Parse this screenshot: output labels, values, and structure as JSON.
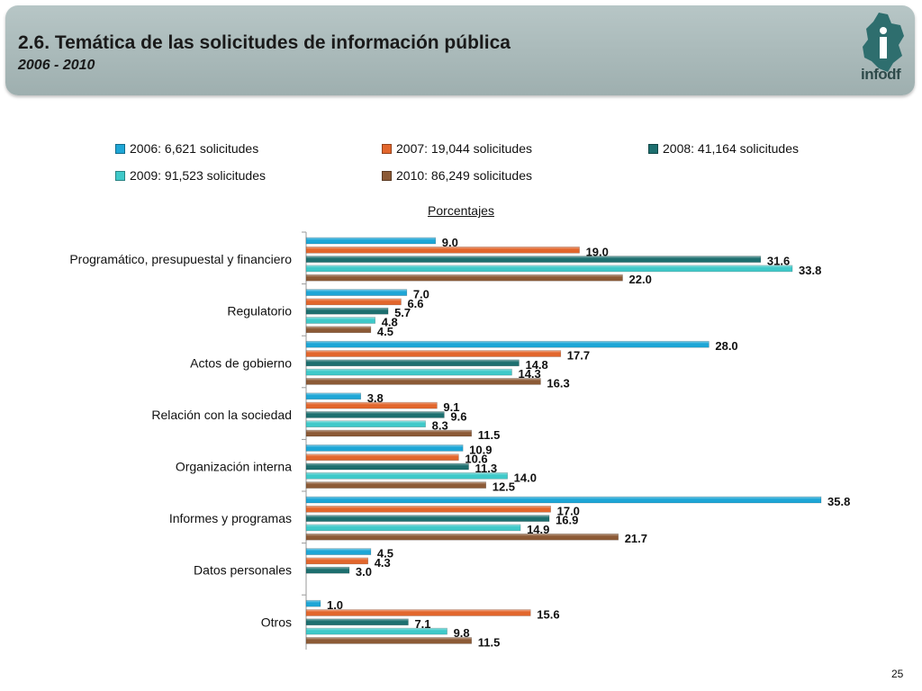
{
  "slide": {
    "title": "2.6. Temática de las solicitudes de información pública",
    "subtitle": "2006 - 2010",
    "logo_text": "infodf",
    "page_number": "25"
  },
  "chart_data": {
    "type": "bar",
    "orientation": "horizontal",
    "title": "Porcentajes",
    "categories": [
      "Programático, presupuestal y financiero",
      "Regulatorio",
      "Actos de gobierno",
      "Relación con la sociedad",
      "Organización interna",
      "Informes y programas",
      "Datos personales",
      "Otros"
    ],
    "series": [
      {
        "name": "2006: 6,621 solicitudes",
        "color": "#1ea6d6",
        "values": [
          9.0,
          7.0,
          28.0,
          3.8,
          10.9,
          35.8,
          4.5,
          1.0
        ]
      },
      {
        "name": "2007: 19,044 solicitudes",
        "color": "#e2662c",
        "values": [
          19.0,
          6.6,
          17.7,
          9.1,
          10.6,
          17.0,
          4.3,
          15.6
        ]
      },
      {
        "name": "2008: 41,164 solicitudes",
        "color": "#1d6f6f",
        "values": [
          31.6,
          5.7,
          14.8,
          9.6,
          11.3,
          16.9,
          3.0,
          7.1
        ]
      },
      {
        "name": "2009: 91,523 solicitudes",
        "color": "#3fc9c9",
        "values": [
          33.8,
          4.8,
          14.3,
          8.3,
          14.0,
          14.9,
          null,
          9.8
        ]
      },
      {
        "name": "2010: 86,249 solicitudes",
        "color": "#8c5a36",
        "values": [
          22.0,
          4.5,
          16.3,
          11.5,
          12.5,
          21.7,
          null,
          11.5
        ]
      }
    ],
    "xlim": [
      0,
      40
    ],
    "grid": false,
    "legend_position": "top",
    "value_labels": true
  }
}
